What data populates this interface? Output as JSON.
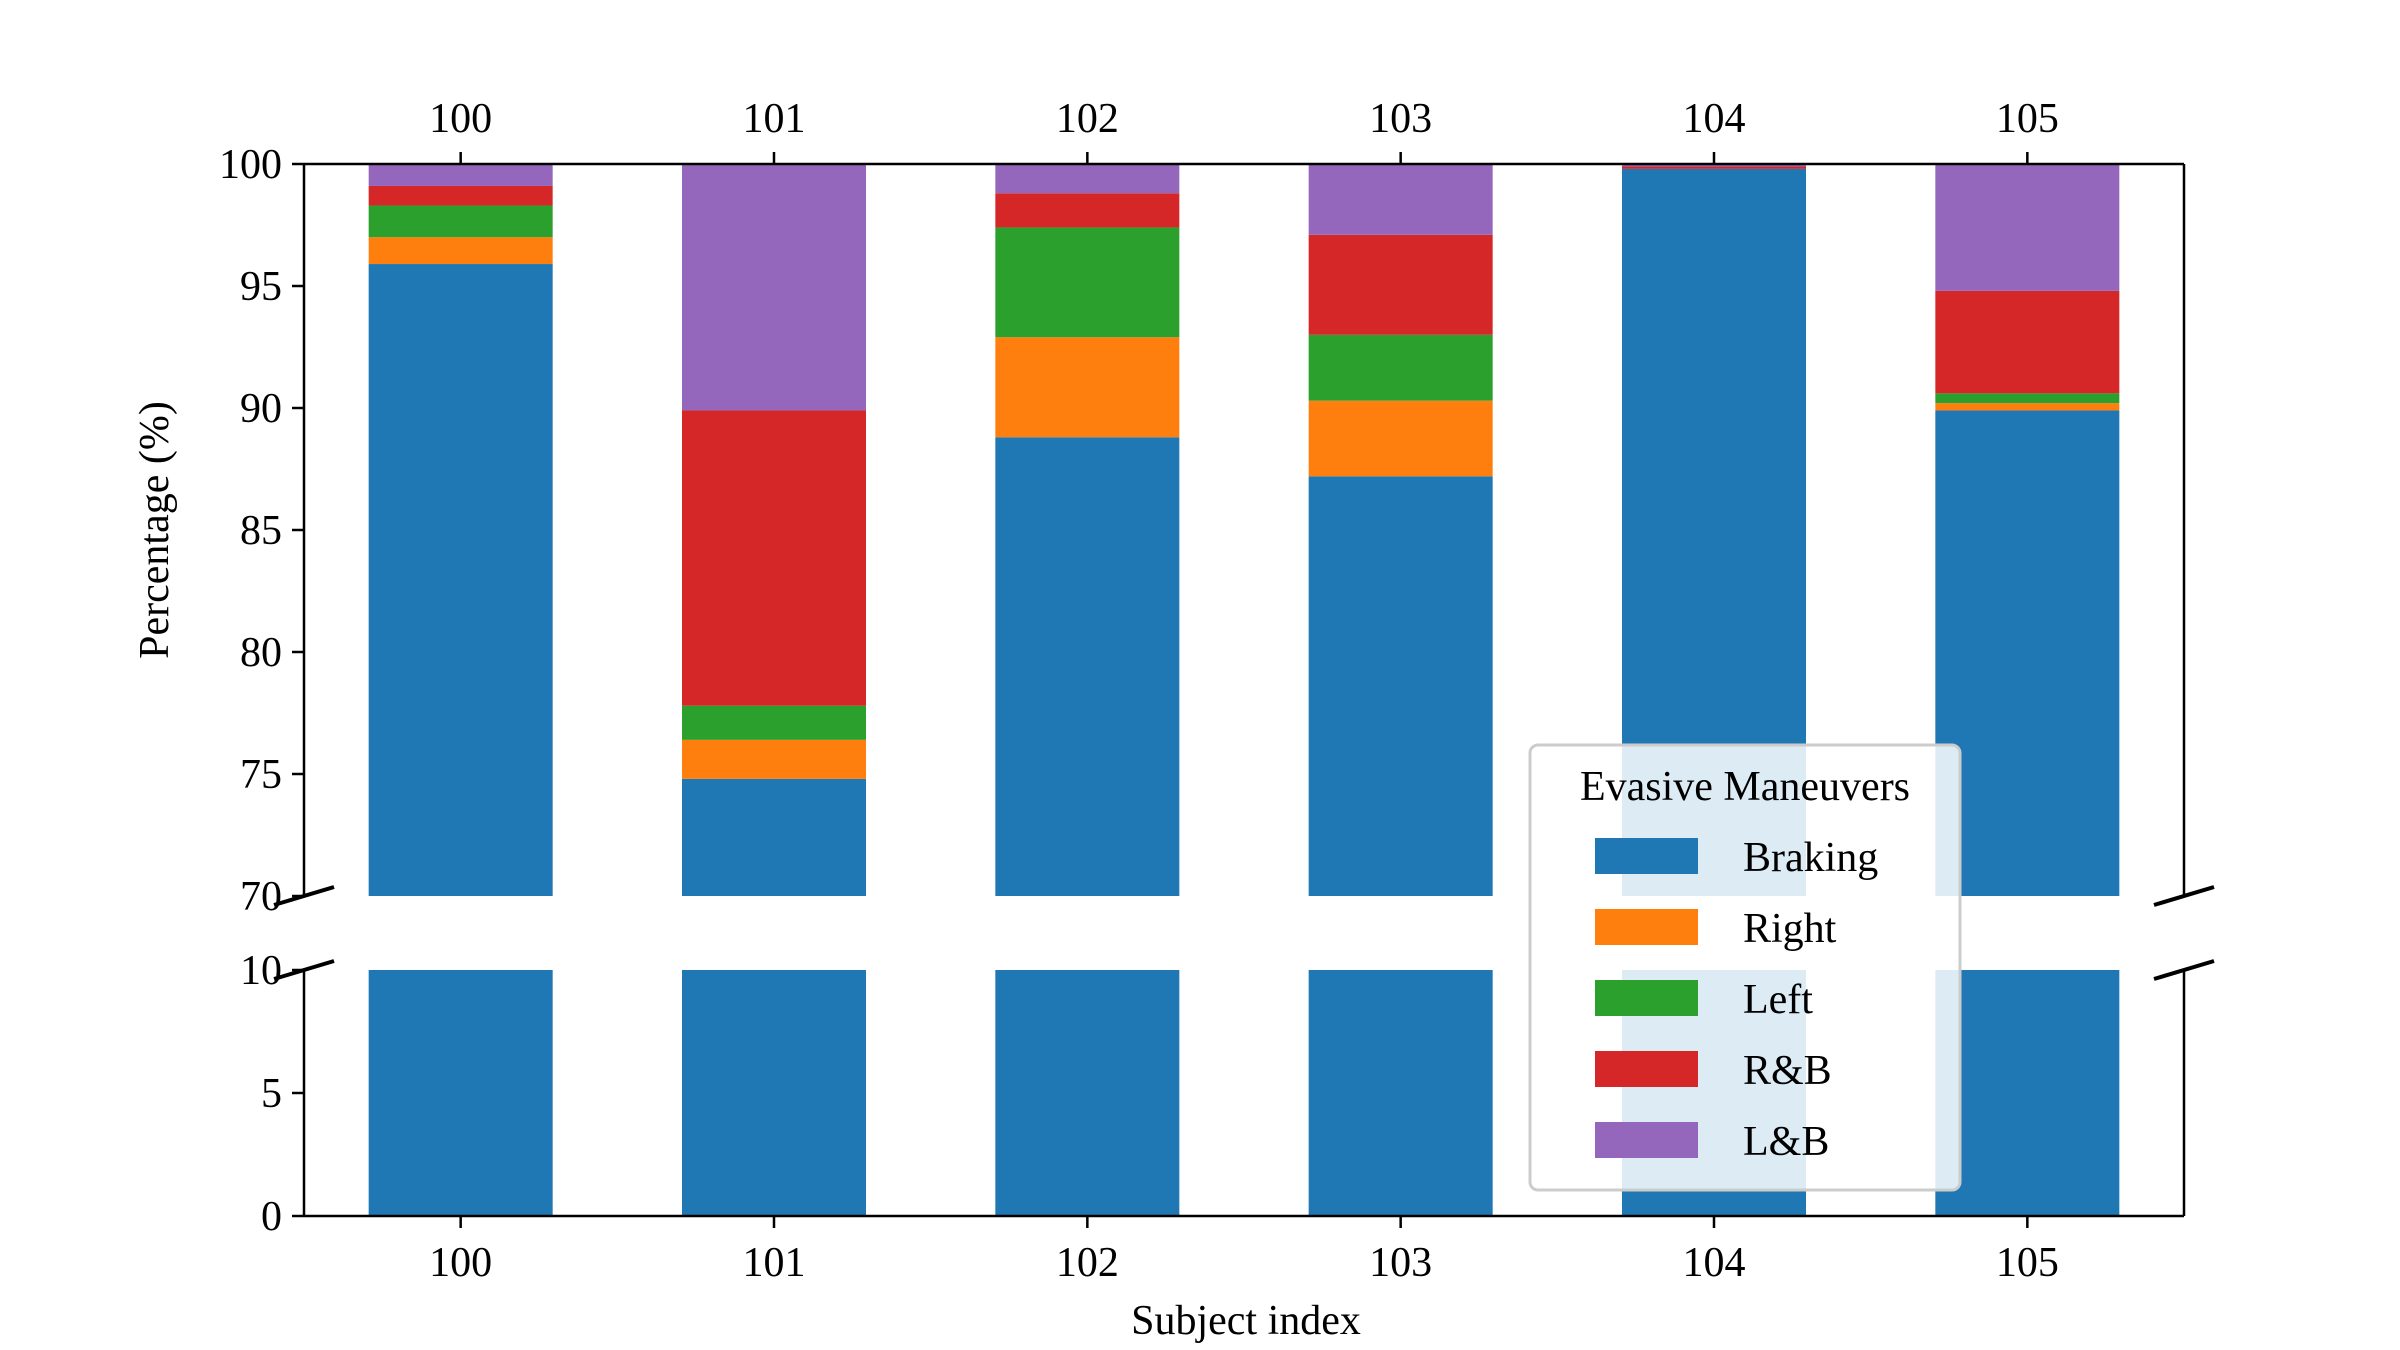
{
  "chart_data": {
    "type": "bar",
    "stacked": true,
    "broken_y_axis": true,
    "xlabel": "Subject index",
    "ylabel": "Percentage (%)",
    "categories": [
      "100",
      "101",
      "102",
      "103",
      "104",
      "105"
    ],
    "upper_ylim": [
      70,
      100
    ],
    "upper_yticks": [
      "70",
      "75",
      "80",
      "85",
      "90",
      "95",
      "100"
    ],
    "lower_ylim": [
      0,
      10
    ],
    "lower_yticks": [
      "0",
      "5",
      "10"
    ],
    "legend": {
      "title": "Evasive Maneuvers",
      "position": "lower-right"
    },
    "series": [
      {
        "name": "Braking",
        "color": "#1f77b4",
        "values": [
          95.9,
          74.8,
          88.8,
          87.2,
          99.8,
          89.9
        ]
      },
      {
        "name": "Right",
        "color": "#ff7f0e",
        "values": [
          1.1,
          1.6,
          4.1,
          3.1,
          0.0,
          0.3
        ]
      },
      {
        "name": "Left",
        "color": "#2ca02c",
        "values": [
          1.3,
          1.4,
          4.5,
          2.7,
          0.0,
          0.4
        ]
      },
      {
        "name": "R&B",
        "color": "#d62728",
        "values": [
          0.8,
          12.1,
          1.4,
          4.1,
          0.1,
          4.2
        ]
      },
      {
        "name": "L&B",
        "color": "#9467bd",
        "values": [
          0.9,
          10.1,
          1.2,
          2.9,
          0.1,
          5.2
        ]
      }
    ]
  }
}
